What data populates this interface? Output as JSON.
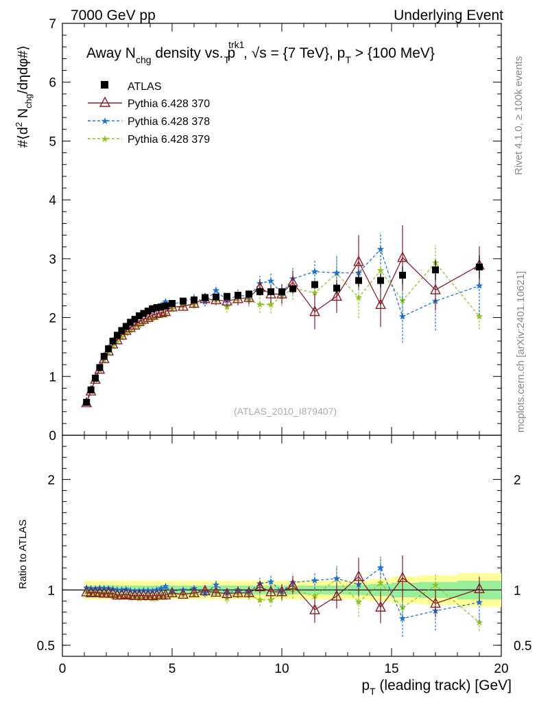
{
  "header": {
    "left": "7000 GeV pp",
    "right": "Underlying Event"
  },
  "side": {
    "rivet": "Rivet 4.1.0, ≥ 100k events",
    "mcplots": "mcplots.cern.ch [arXiv:2401.10621]"
  },
  "title": {
    "pre": "Away N",
    "chg": "chg",
    "mid": " density vs. p",
    "trk": "trk1",
    "tsub": "T",
    "post": ", √s = {7 TeV}, p",
    "tsub2": "T",
    "post2": " > {100 MeV}"
  },
  "ylabel": {
    "a": "#⟨d",
    "b": "2",
    "c": " N",
    "d": "chg",
    "e": "/dηdφ#⟩"
  },
  "xlabel": {
    "p": "p",
    "t": "T",
    "rest": " (leading track) [GeV]"
  },
  "ratio_label": "Ratio to ATLAS",
  "watermark": "(ATLAS_2010_I879407)",
  "chart_data": {
    "type": "scatter",
    "x": [
      1.1,
      1.3,
      1.5,
      1.7,
      1.9,
      2.1,
      2.3,
      2.5,
      2.7,
      2.9,
      3.1,
      3.3,
      3.5,
      3.7,
      3.9,
      4.1,
      4.3,
      4.5,
      4.7,
      5.0,
      5.5,
      6.0,
      6.5,
      7.0,
      7.5,
      8.0,
      8.5,
      9.0,
      9.5,
      10.0,
      10.5,
      11.5,
      12.5,
      13.5,
      14.5,
      15.5,
      17.0,
      19.0
    ],
    "series": [
      {
        "name": "ATLAS",
        "color": "#000000",
        "values": [
          0.56,
          0.77,
          0.97,
          1.15,
          1.34,
          1.47,
          1.6,
          1.7,
          1.78,
          1.85,
          1.92,
          1.97,
          2.03,
          2.07,
          2.11,
          2.15,
          2.17,
          2.18,
          2.2,
          2.24,
          2.28,
          2.3,
          2.34,
          2.35,
          2.36,
          2.38,
          2.4,
          2.44,
          2.44,
          2.44,
          2.49,
          2.56,
          2.5,
          2.63,
          2.63,
          2.72,
          2.81,
          2.86
        ],
        "err": [
          0.01,
          0.01,
          0.01,
          0.01,
          0.01,
          0.01,
          0.01,
          0.01,
          0.01,
          0.01,
          0.01,
          0.01,
          0.01,
          0.01,
          0.01,
          0.01,
          0.01,
          0.01,
          0.01,
          0.02,
          0.02,
          0.02,
          0.03,
          0.03,
          0.03,
          0.04,
          0.04,
          0.05,
          0.05,
          0.06,
          0.06,
          0.07,
          0.08,
          0.1,
          0.12,
          0.15,
          0.17,
          0.2
        ]
      },
      {
        "name": "Pythia 6.428 370",
        "color": "#8b1a2b",
        "values": [
          0.55,
          0.75,
          0.95,
          1.12,
          1.3,
          1.43,
          1.55,
          1.62,
          1.7,
          1.78,
          1.83,
          1.87,
          1.93,
          1.97,
          2.0,
          2.04,
          2.07,
          2.08,
          2.1,
          2.18,
          2.19,
          2.24,
          2.32,
          2.3,
          2.28,
          2.32,
          2.34,
          2.51,
          2.4,
          2.4,
          2.6,
          2.1,
          2.36,
          2.95,
          2.22,
          3.02,
          2.47,
          2.89
        ],
        "err": [
          0.01,
          0.01,
          0.01,
          0.01,
          0.02,
          0.02,
          0.02,
          0.02,
          0.02,
          0.03,
          0.03,
          0.03,
          0.03,
          0.03,
          0.04,
          0.04,
          0.04,
          0.04,
          0.05,
          0.05,
          0.06,
          0.07,
          0.08,
          0.09,
          0.1,
          0.11,
          0.12,
          0.14,
          0.15,
          0.17,
          0.2,
          0.3,
          0.28,
          0.45,
          0.38,
          0.55,
          0.35,
          0.32
        ]
      },
      {
        "name": "Pythia 6.428 378",
        "color": "#1a73d9",
        "values": [
          0.57,
          0.78,
          0.98,
          1.17,
          1.36,
          1.49,
          1.61,
          1.7,
          1.78,
          1.86,
          1.91,
          1.95,
          2.01,
          2.06,
          2.1,
          2.13,
          2.17,
          2.21,
          2.27,
          2.22,
          2.28,
          2.33,
          2.27,
          2.46,
          2.29,
          2.38,
          2.36,
          2.58,
          2.62,
          2.41,
          2.66,
          2.78,
          2.76,
          2.76,
          3.16,
          2.02,
          2.28,
          2.54
        ],
        "err": [
          0.01,
          0.01,
          0.01,
          0.02,
          0.02,
          0.02,
          0.02,
          0.02,
          0.03,
          0.03,
          0.03,
          0.03,
          0.03,
          0.04,
          0.04,
          0.04,
          0.04,
          0.05,
          0.05,
          0.05,
          0.06,
          0.07,
          0.08,
          0.09,
          0.1,
          0.11,
          0.12,
          0.13,
          0.14,
          0.16,
          0.2,
          0.2,
          0.28,
          0.3,
          0.25,
          0.45,
          0.5,
          0.5
        ]
      },
      {
        "name": "Pythia 6.428 379",
        "color": "#8fc31f",
        "values": [
          0.55,
          0.75,
          0.94,
          1.11,
          1.28,
          1.4,
          1.51,
          1.59,
          1.66,
          1.73,
          1.78,
          1.84,
          1.87,
          1.92,
          1.96,
          1.98,
          2.0,
          2.03,
          2.05,
          2.14,
          2.2,
          2.22,
          2.27,
          2.3,
          2.18,
          2.32,
          2.3,
          2.22,
          2.22,
          2.36,
          2.5,
          2.42,
          2.75,
          2.34,
          2.8,
          2.29,
          2.93,
          2.02
        ],
        "err": [
          0.01,
          0.01,
          0.01,
          0.01,
          0.02,
          0.02,
          0.02,
          0.02,
          0.02,
          0.03,
          0.03,
          0.03,
          0.03,
          0.03,
          0.04,
          0.04,
          0.04,
          0.04,
          0.05,
          0.05,
          0.06,
          0.07,
          0.08,
          0.09,
          0.1,
          0.11,
          0.12,
          0.14,
          0.15,
          0.17,
          0.2,
          0.3,
          0.3,
          0.35,
          0.65,
          0.35,
          0.3,
          0.22
        ]
      }
    ],
    "xlim": [
      0,
      20
    ],
    "ylim": [
      0,
      7
    ],
    "xticks": [
      0,
      5,
      10,
      15,
      20
    ],
    "yticks": [
      0,
      1,
      2,
      3,
      4,
      5,
      6,
      7
    ],
    "ratio_ylim": [
      0.4,
      2.4
    ],
    "ratio_ticks": [
      0.5,
      1,
      2
    ],
    "ratio_band_stat": 0.04,
    "ratio_band_tot": 0.085,
    "legend_position": "top-left"
  }
}
